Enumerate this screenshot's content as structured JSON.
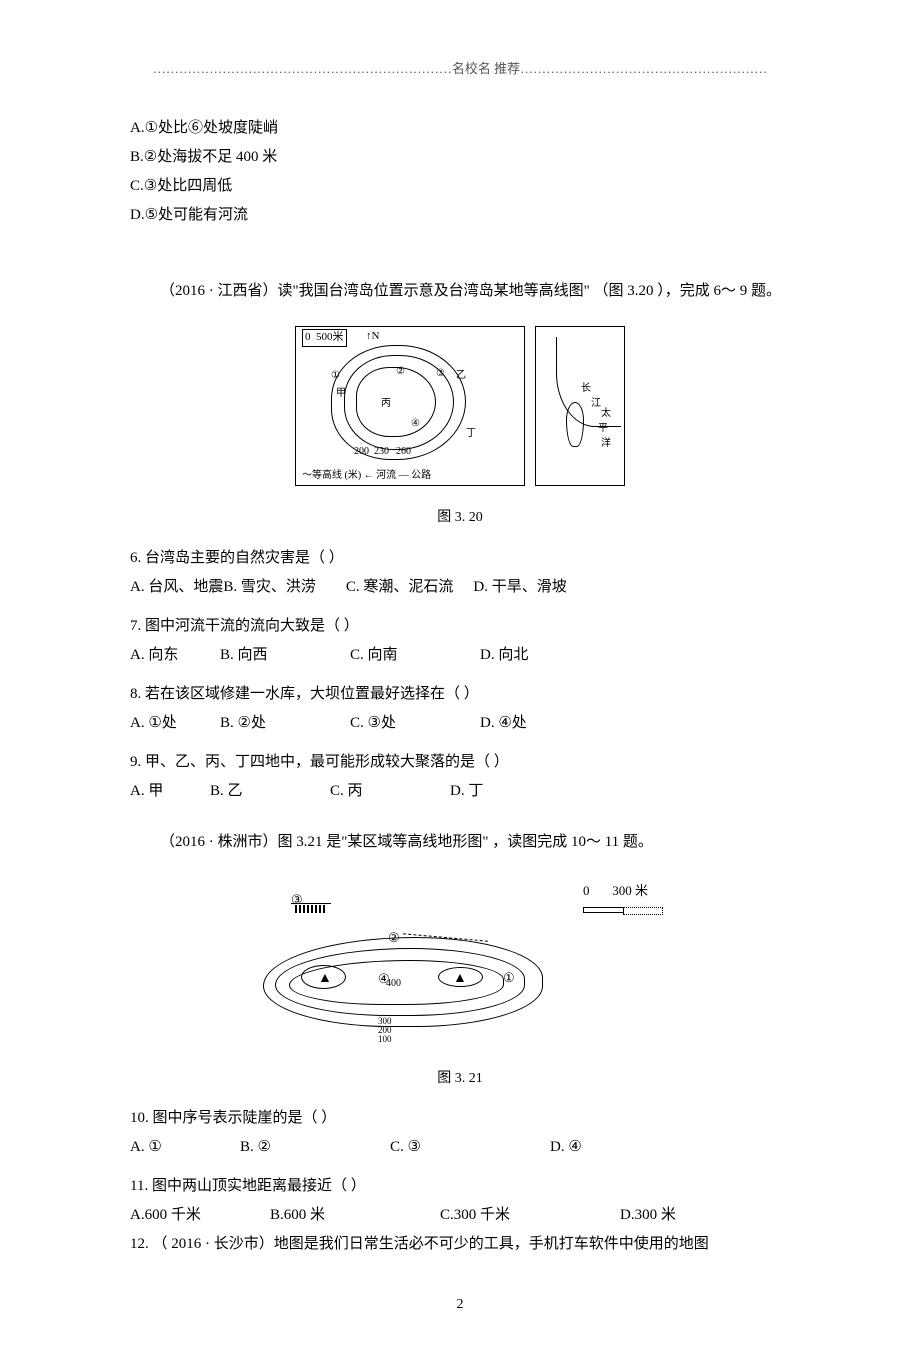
{
  "header": {
    "separator_left": "……………………………………………………………",
    "separator_label": "名校名 推荐",
    "separator_right": "…………………………………………………"
  },
  "pre_choices": [
    "A.①处比⑥处坡度陡峭",
    "B.②处海拔不足  400 米",
    "C.③处比四周低",
    "D.⑤处可能有河流"
  ],
  "context_1": {
    "text": "（2016 · 江西省）读\"我国台湾岛位置示意及台湾岛某地等高线图\"      （图 3.20 ），完成 6～ 9 题。",
    "year_color": "#cc5555"
  },
  "fig320": {
    "scale_label": "500米",
    "north_label": "N",
    "circled": [
      "①",
      "②",
      "③",
      "④"
    ],
    "place_labels": [
      "甲",
      "乙",
      "丙",
      "丁"
    ],
    "contour_values": [
      "200",
      "230",
      "260"
    ],
    "right_labels": [
      "长",
      "江",
      "太",
      "平",
      "洋"
    ],
    "legend": "等高线 (米)  ← 河流 — 公路",
    "caption": "图 3. 20"
  },
  "q6": {
    "stem": "6. 台湾岛主要的自然灾害是（        ）",
    "options": [
      "A. 台风、地震",
      "B.     雪灾、洪涝",
      "C.     寒潮、泥石流",
      "D.        干旱、滑坡"
    ],
    "widths": [
      "130px",
      "160px",
      "170px",
      "160px"
    ]
  },
  "q7": {
    "stem": "7. 图中河流干流的流向大致是（        ）",
    "options": [
      "A. 向东",
      "B.     向西",
      "C.     向南",
      "D.     向北"
    ],
    "widths": [
      "90px",
      "130px",
      "130px",
      "130px"
    ]
  },
  "q8": {
    "stem": "8. 若在该区域修建一水库，大坝位置最好选择在（            ）",
    "options": [
      "A. ①处",
      "B.     ②处",
      "C.     ③处",
      "D.     ④处"
    ],
    "widths": [
      "90px",
      "130px",
      "130px",
      "130px"
    ]
  },
  "q9": {
    "stem": "9. 甲、乙、丙、丁四地中，最可能形成较大聚落的是（            ）",
    "options": [
      "A. 甲",
      "B.     乙",
      "C.     丙",
      "D.     丁"
    ],
    "widths": [
      "80px",
      "120px",
      "120px",
      "120px"
    ]
  },
  "context_2": {
    "text": "（2016 · 株洲市）图 3.21 是\"某区域等高线地形图\"   ，读图完成  10～ 11 题。",
    "year_color": "#cc5555"
  },
  "fig321": {
    "circled": [
      "①",
      "②",
      "③",
      "④"
    ],
    "peak_symbol": "▲",
    "val400": "400",
    "contour_stack": "300\n200\n100",
    "scale_left": "0",
    "scale_right": "300 米",
    "caption": "图 3. 21"
  },
  "q10": {
    "stem": "10. 图中序号表示陡崖的是（        ）",
    "options": [
      "A. ①",
      "B.        ②",
      "C.          ③",
      "D.        ④"
    ],
    "widths": [
      "110px",
      "150px",
      "160px",
      "140px"
    ]
  },
  "q11": {
    "stem": "11. 图中两山顶实地距离最接近（        ）",
    "options": [
      "A.600 千米",
      "B.600        米",
      "C.300        千米",
      "D.300        米"
    ],
    "widths": [
      "140px",
      "170px",
      "180px",
      "160px"
    ]
  },
  "q12": {
    "text": "12. （ 2016 · 长沙市）地图是我们日常生活必不可少的工具，手机打车软件中使用的地图"
  },
  "page_number": "2",
  "colors": {
    "text": "#000000",
    "background": "#ffffff",
    "header_gray": "#555555",
    "accent_red": "#cc5555"
  }
}
